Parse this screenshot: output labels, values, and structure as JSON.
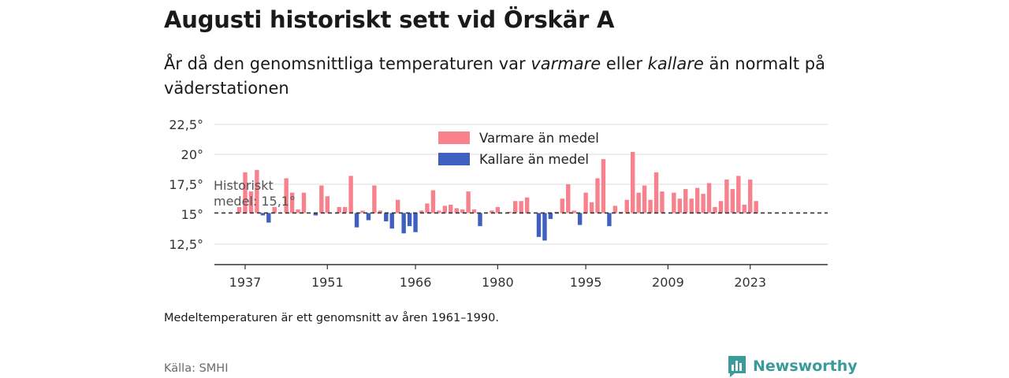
{
  "header": {
    "title": "Augusti historiskt sett vid Örskär A",
    "subtitle_pre": "År då den genomsnittliga temperaturen var ",
    "subtitle_warm": "varmare",
    "subtitle_mid": " eller ",
    "subtitle_cold": "kallare",
    "subtitle_post": " än normalt på väderstationen"
  },
  "footer": {
    "note": "Medeltemperaturen är ett genomsnitt av åren 1961–1990.",
    "source": "Källa: SMHI",
    "brand": "Newsworthy"
  },
  "colors": {
    "warm": "#f7828e",
    "cold": "#4060bf",
    "brand": "#3b9a9a"
  },
  "chart_data": {
    "type": "bar",
    "baseline": 15.1,
    "baseline_label_line1": "Historiskt",
    "baseline_label_line2": "medel: 15,1°",
    "legend": {
      "warm": "Varmare än medel",
      "cold": "Kallare än medel"
    },
    "x_ticks": [
      "1937",
      "1951",
      "1966",
      "1980",
      "1995",
      "2009",
      "2023"
    ],
    "y_ticks": [
      "12,5°",
      "15°",
      "17,5°",
      "20°",
      "22,5°"
    ],
    "ylim": [
      10.8,
      22.5
    ],
    "x": [
      1936,
      1937,
      1938,
      1939,
      1940,
      1941,
      1942,
      1943,
      1944,
      1945,
      1946,
      1947,
      1948,
      1949,
      1950,
      1951,
      1952,
      1953,
      1954,
      1955,
      1956,
      1957,
      1958,
      1959,
      1960,
      1961,
      1962,
      1963,
      1964,
      1965,
      1966,
      1967,
      1968,
      1969,
      1970,
      1971,
      1972,
      1973,
      1974,
      1975,
      1976,
      1977,
      1978,
      1979,
      1980,
      1981,
      1982,
      1983,
      1984,
      1985,
      1986,
      1987,
      1988,
      1989,
      1990,
      1991,
      1992,
      1993,
      1994,
      1995,
      1996,
      1997,
      1998,
      1999,
      2000,
      2001,
      2002,
      2003,
      2004,
      2005,
      2006,
      2007,
      2008,
      2009,
      2010,
      2011,
      2012,
      2013,
      2014,
      2015,
      2016,
      2017,
      2018,
      2019,
      2020,
      2021,
      2022,
      2023,
      2024
    ],
    "values": [
      15.6,
      18.5,
      16.9,
      18.7,
      14.9,
      14.3,
      15.6,
      null,
      18.0,
      16.8,
      15.4,
      16.8,
      null,
      14.9,
      17.4,
      16.5,
      null,
      15.6,
      15.6,
      18.2,
      13.9,
      15.3,
      14.5,
      17.4,
      15.3,
      14.4,
      13.8,
      16.2,
      13.4,
      14.0,
      13.5,
      15.3,
      15.9,
      17.0,
      15.3,
      15.7,
      15.8,
      15.5,
      15.4,
      16.9,
      15.4,
      14.0,
      null,
      15.3,
      15.6,
      null,
      15.2,
      16.1,
      16.1,
      16.4,
      null,
      13.1,
      12.8,
      14.6,
      15.2,
      16.3,
      17.5,
      15.3,
      14.1,
      16.8,
      16.0,
      18.0,
      19.6,
      14.0,
      15.7,
      15.2,
      16.2,
      20.2,
      16.8,
      17.4,
      16.2,
      18.5,
      16.9,
      null,
      16.8,
      16.3,
      17.1,
      16.3,
      17.2,
      16.7,
      17.6,
      15.6,
      16.1,
      17.9,
      17.1,
      18.2,
      15.8,
      17.9,
      16.1
    ]
  }
}
